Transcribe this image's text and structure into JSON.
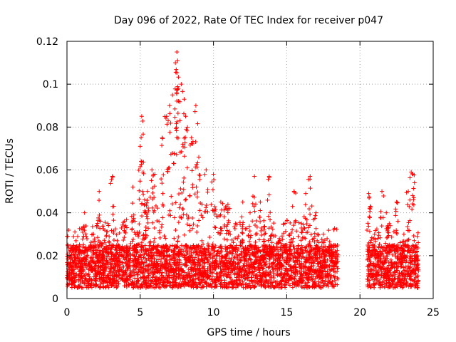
{
  "chart_data": {
    "type": "scatter",
    "title": "Day 096 of 2022, Rate Of TEC Index for receiver p047",
    "xlabel": "GPS time / hours",
    "ylabel": "ROTI / TECUs",
    "xlim": [
      0,
      25
    ],
    "ylim": [
      0,
      0.12
    ],
    "xticks": [
      0,
      5,
      10,
      15,
      20,
      25
    ],
    "xtick_labels": [
      "0",
      "5",
      "10",
      "15",
      "20",
      "25"
    ],
    "yticks": [
      0,
      0.02,
      0.04,
      0.06,
      0.08,
      0.1,
      0.12
    ],
    "ytick_labels": [
      "0",
      "0.02",
      "0.04",
      "0.06",
      "0.08",
      "0.1",
      "0.12"
    ],
    "grid": true,
    "marker": "+",
    "color": "#ff0000",
    "data_gap_hours": [
      18.5,
      20.5
    ],
    "coverage_hours": [
      [
        0,
        18.5
      ],
      [
        20.5,
        24
      ]
    ],
    "series": [
      {
        "name": "ROTI",
        "x": [
          0.1,
          0.5,
          1.0,
          1.2,
          1.8,
          2.2,
          2.4,
          2.8,
          3.1,
          3.5,
          4.0,
          4.5,
          4.8,
          5.0,
          5.1,
          5.2,
          5.3,
          5.5,
          5.8,
          6.0,
          6.5,
          6.8,
          7.0,
          7.2,
          7.4,
          7.5,
          7.55,
          7.6,
          7.8,
          8.0,
          8.1,
          8.5,
          8.8,
          9.0,
          9.5,
          10.0,
          10.5,
          11.0,
          11.5,
          12.0,
          12.5,
          12.8,
          13.2,
          13.8,
          14.0,
          14.5,
          15.0,
          15.5,
          16.0,
          16.3,
          16.6,
          17.0,
          17.5,
          18.0,
          18.3,
          20.6,
          20.7,
          21.0,
          21.5,
          21.8,
          22.0,
          22.5,
          23.0,
          23.3,
          23.5,
          23.6,
          23.9
        ],
        "y": [
          0.015,
          0.02,
          0.018,
          0.04,
          0.03,
          0.05,
          0.022,
          0.035,
          0.057,
          0.025,
          0.034,
          0.052,
          0.03,
          0.071,
          0.085,
          0.059,
          0.04,
          0.05,
          0.06,
          0.058,
          0.075,
          0.085,
          0.09,
          0.095,
          0.11,
          0.115,
          0.111,
          0.098,
          0.1,
          0.093,
          0.085,
          0.075,
          0.09,
          0.066,
          0.06,
          0.058,
          0.045,
          0.042,
          0.035,
          0.045,
          0.04,
          0.057,
          0.045,
          0.057,
          0.03,
          0.028,
          0.025,
          0.05,
          0.035,
          0.049,
          0.057,
          0.04,
          0.03,
          0.025,
          0.022,
          0.049,
          0.043,
          0.03,
          0.05,
          0.04,
          0.035,
          0.045,
          0.03,
          0.05,
          0.059,
          0.058,
          0.02
        ]
      }
    ]
  }
}
